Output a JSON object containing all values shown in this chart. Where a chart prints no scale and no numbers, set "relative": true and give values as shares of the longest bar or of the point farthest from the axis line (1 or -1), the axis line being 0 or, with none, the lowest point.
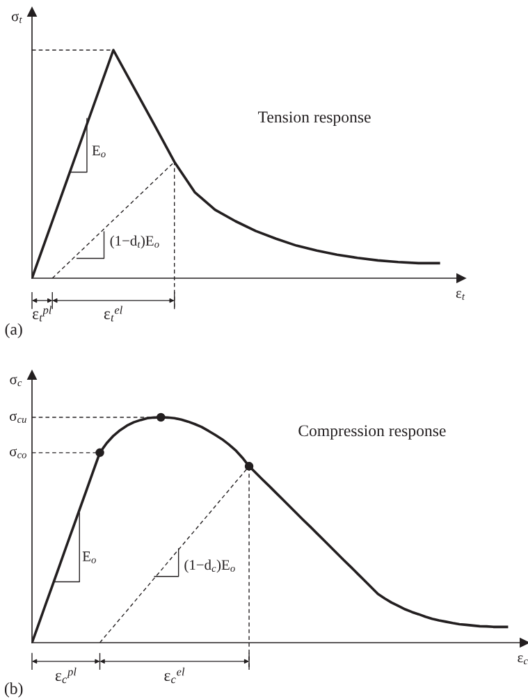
{
  "chart_data": [
    {
      "type": "line",
      "relative": true,
      "ylabel": "σ$_{t}$",
      "xlabel": "ε$_{t}$",
      "marker": "none",
      "line_style": "solid",
      "categories": [
        null,
        null,
        null,
        null,
        null,
        null,
        null,
        null,
        null,
        null,
        null,
        null,
        null,
        null,
        null,
        null,
        null,
        null,
        null,
        null,
        null
      ],
      "series": [
        {
          "color": "#231f20",
          "values": [
            0,
            0.25,
            0.5,
            0.75,
            1,
            0.837,
            0.675,
            0.51,
            0.377,
            0.3,
            0.25,
            0.207,
            0.173,
            0.143,
            0.121,
            0.103,
            0.089,
            0.078,
            0.071,
            0.066,
            0.066
          ]
        },
        {
          "color": "#231f20",
          "line_style": "dashed",
          "values": [
            null,
            0,
            0.085,
            0.17,
            0.255,
            0.34,
            0.425,
            0.51,
            null,
            null,
            null,
            null,
            null,
            null,
            null,
            null,
            null,
            null,
            null,
            null,
            null
          ]
        }
      ],
      "ref_lines": [
        {
          "axis": "y",
          "value": 1,
          "line_style": "dashed"
        }
      ],
      "annotations": [
        "Tension response",
        "E$_{o}$",
        "(1−d$_{t}$)E$_{o}$",
        "ε$_{t}$$^{pl}$",
        "ε$_{t}$$^{el}$",
        "(a)"
      ]
    },
    {
      "type": "line",
      "relative": true,
      "ylabel": "σ$_{c}$",
      "xlabel": "ε$_{c}$",
      "marker": "none",
      "line_style": "solid",
      "categories": [
        null,
        null,
        null,
        null,
        null,
        null,
        null,
        null,
        null,
        null,
        null,
        null,
        null,
        null,
        null,
        null,
        null,
        null,
        null,
        null,
        null,
        null,
        null,
        null,
        null,
        null,
        null,
        null,
        null,
        null,
        null,
        null,
        null,
        null,
        null,
        null,
        null,
        null,
        null,
        null,
        null,
        null,
        null,
        null,
        null,
        null,
        null,
        null,
        null,
        null,
        null,
        null,
        null,
        null,
        null,
        null,
        null,
        null,
        null,
        null,
        null,
        null,
        null,
        null,
        null,
        null,
        null,
        null,
        null,
        null,
        null
      ],
      "series": [
        {
          "color": "#231f20",
          "values": [
            0,
            0.084,
            0.169,
            0.253,
            0.337,
            0.422,
            0.506,
            0.59,
            0.674,
            0.759,
            0.843,
            0.885,
            0.918,
            0.943,
            0.963,
            0.978,
            0.988,
            0.996,
            0.999,
            1,
            0.999,
            0.996,
            0.99,
            0.981,
            0.97,
            0.957,
            0.94,
            0.922,
            0.903,
            0.88,
            0.854,
            0.821,
            0.783,
            0.753,
            0.723,
            0.694,
            0.664,
            0.634,
            0.604,
            0.574,
            0.544,
            0.515,
            0.485,
            0.455,
            0.425,
            0.395,
            0.365,
            0.336,
            0.306,
            0.276,
            0.246,
            0.216,
            0.196,
            0.178,
            0.163,
            0.148,
            0.136,
            0.126,
            0.115,
            0.106,
            0.099,
            0.093,
            0.087,
            0.082,
            0.079,
            0.076,
            0.073,
            0.072,
            0.07,
            0.07,
            0.07
          ]
        },
        {
          "color": "#231f20",
          "line_style": "dashed",
          "values": [
            null,
            null,
            null,
            null,
            null,
            null,
            null,
            null,
            null,
            null,
            0,
            0.036,
            0.071,
            0.107,
            0.142,
            0.178,
            0.214,
            0.249,
            0.285,
            0.32,
            0.356,
            0.392,
            0.427,
            0.463,
            0.498,
            0.534,
            0.569,
            0.605,
            0.641,
            0.676,
            0.712,
            0.747,
            0.783,
            null,
            null,
            null,
            null,
            null,
            null,
            null,
            null,
            null,
            null,
            null,
            null,
            null,
            null,
            null,
            null,
            null,
            null,
            null,
            null,
            null,
            null,
            null,
            null,
            null,
            null,
            null,
            null,
            null,
            null,
            null,
            null,
            null,
            null,
            null,
            null,
            null,
            null
          ]
        },
        {
          "color": "#231f20",
          "marker": "circle",
          "values": [
            null,
            null,
            null,
            null,
            null,
            null,
            null,
            null,
            null,
            null,
            0.843,
            null,
            null,
            null,
            null,
            null,
            null,
            null,
            null,
            1,
            null,
            null,
            null,
            null,
            null,
            null,
            null,
            null,
            null,
            null,
            null,
            null,
            0.783,
            null,
            null,
            null,
            null,
            null,
            null,
            null,
            null,
            null,
            null,
            null,
            null,
            null,
            null,
            null,
            null,
            null,
            null,
            null,
            null,
            null,
            null,
            null,
            null,
            null,
            null,
            null,
            null,
            null,
            null,
            null,
            null,
            null,
            null,
            null,
            null,
            null,
            null
          ]
        }
      ],
      "ref_lines": [
        {
          "axis": "y",
          "value": 0.843,
          "label": "σ$_{co}$",
          "line_style": "dashed"
        },
        {
          "axis": "y",
          "value": 1,
          "label": "σ$_{cu}$",
          "line_style": "dashed"
        }
      ],
      "annotations": [
        "Compression response",
        "E$_{o}$",
        "(1−d$_{c}$)E$_{o}$",
        "ε$_{c}$$^{pl}$",
        "ε$_{c}$$^{el}$",
        "(b)"
      ]
    }
  ]
}
